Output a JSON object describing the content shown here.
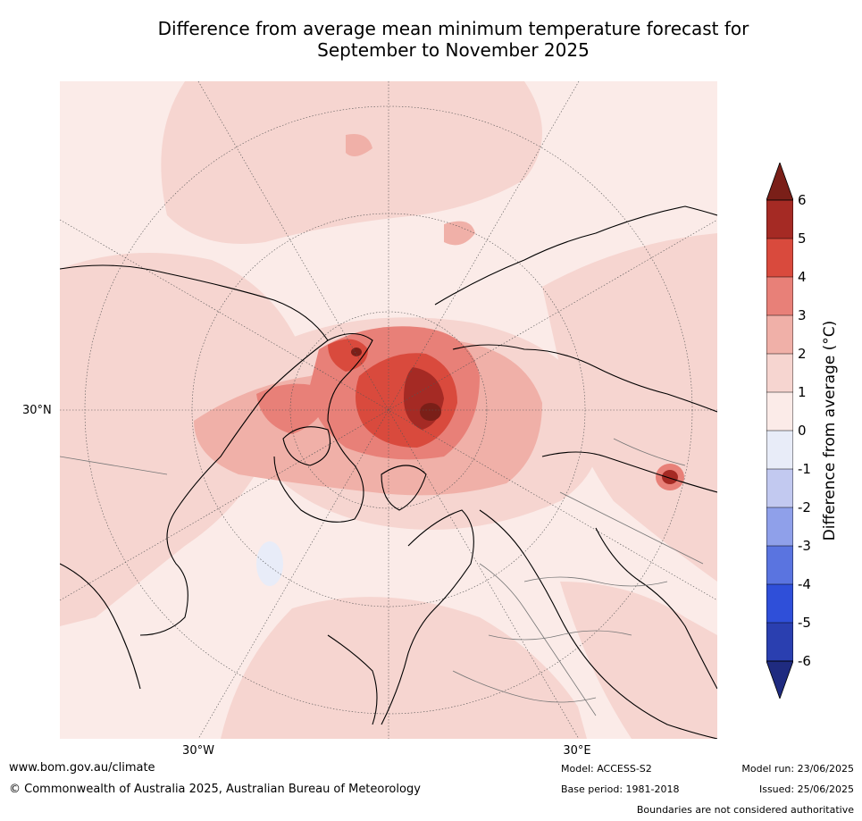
{
  "title_line1": "Difference from average mean minimum temperature forecast for",
  "title_line2": "September to November 2025",
  "map": {
    "lon_labels": [
      "30°W",
      "30°E"
    ],
    "lat_labels": [
      "30°N"
    ]
  },
  "colorbar": {
    "label": "Difference from average (°C)",
    "ticks": [
      "6",
      "5",
      "4",
      "3",
      "2",
      "1",
      "0",
      "-1",
      "-2",
      "-3",
      "-4",
      "-5",
      "-6"
    ],
    "colors": {
      "above_6": "#7a1f18",
      "5_6": "#a52a24",
      "4_5": "#d94a3d",
      "3_4": "#e88078",
      "2_3": "#f0b0a8",
      "1_2": "#f6d5d0",
      "0_1": "#fbebe8",
      "m1_0": "#e8ecf8",
      "m2_m1": "#c2c9f0",
      "m3_m2": "#8fa0ea",
      "m4_m3": "#5a74e0",
      "m5_m4": "#2f4fd9",
      "m6_m5": "#2a3fb0",
      "below_m6": "#1f2b80"
    }
  },
  "footer": {
    "url": "www.bom.gov.au/climate",
    "copyright": "© Commonwealth of Australia 2025, Australian Bureau of Meteorology",
    "model": "Model: ACCESS-S2",
    "base_period": "Base period: 1981-2018",
    "model_run": "Model run: 23/06/2025",
    "issued": "Issued: 25/06/2025",
    "disclaimer": "Boundaries are not considered authoritative"
  }
}
